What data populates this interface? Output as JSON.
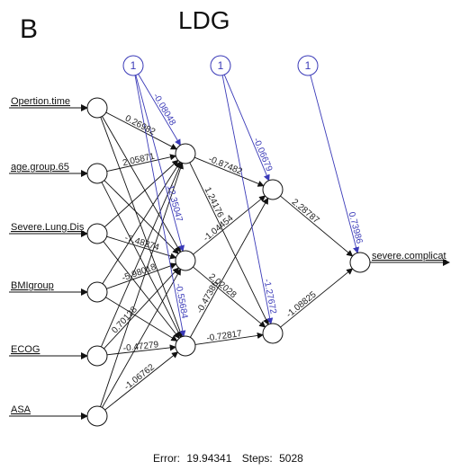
{
  "panel_letter": "B",
  "title": "LDG",
  "inputs": [
    "Opertion.time",
    "age.group.65",
    "Severe.Lung.Dis",
    "BMIgroup",
    "ECOG",
    "ASA"
  ],
  "output": "severe.complicat",
  "bias_label": "1",
  "weights": {
    "hidden1": [
      "-0.87482",
      "1.24176",
      "-1.04454",
      "2.02028",
      "-0.47386",
      "-0.72817"
    ],
    "hidden2": [
      "2.28787",
      "-1.08825"
    ],
    "input_visible": [
      "0.26982",
      "2.05871",
      "-7.48274",
      "-5.98018",
      "0.70128",
      "-0.47279",
      "-1.06762"
    ],
    "bias": [
      "-0.08048",
      "12.35047",
      "-0.55684",
      "-0.06679",
      "-1.27672",
      "0.73986"
    ]
  },
  "footer": {
    "error_label": "Error:",
    "error_value": "19.94341",
    "steps_label": "Steps:",
    "steps_value": "5028"
  },
  "colors": {
    "bias": "#3a3ab8",
    "weight": "#111111"
  }
}
